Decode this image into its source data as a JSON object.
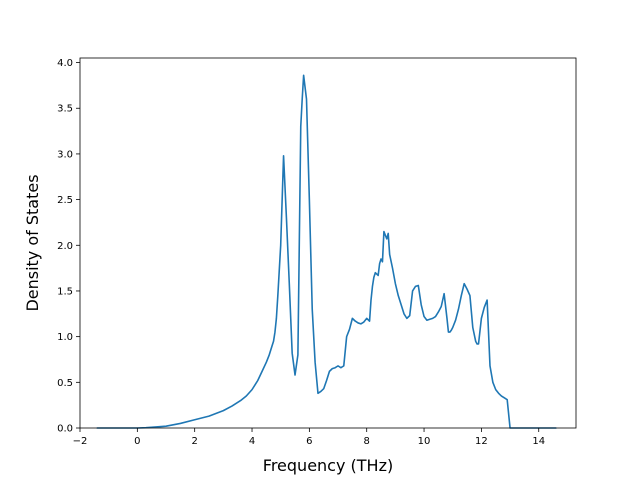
{
  "chart_data": {
    "type": "line",
    "title": "",
    "xlabel": "Frequency (THz)",
    "ylabel": "Density of States",
    "xlim": [
      -2.0,
      15.3
    ],
    "ylim": [
      0.0,
      4.05
    ],
    "grid": false,
    "legend": "none",
    "xticks": [
      -2,
      0,
      2,
      4,
      6,
      8,
      10,
      12,
      14
    ],
    "xtick_labels": [
      "−2",
      "0",
      "2",
      "4",
      "6",
      "8",
      "10",
      "12",
      "14"
    ],
    "yticks": [
      0.0,
      0.5,
      1.0,
      1.5,
      2.0,
      2.5,
      3.0,
      3.5,
      4.0
    ],
    "ytick_labels": [
      "0.0",
      "0.5",
      "1.0",
      "1.5",
      "2.0",
      "2.5",
      "3.0",
      "3.5",
      "4.0"
    ],
    "series": [
      {
        "color": "#1f77b4",
        "x": [
          -1.4,
          -0.5,
          0.0,
          0.3,
          0.6,
          1.0,
          1.5,
          2.0,
          2.5,
          3.0,
          3.3,
          3.6,
          3.8,
          4.0,
          4.2,
          4.35,
          4.5,
          4.6,
          4.7,
          4.75,
          4.8,
          4.85,
          4.9,
          5.0,
          5.1,
          5.2,
          5.3,
          5.35,
          5.4,
          5.5,
          5.6,
          5.7,
          5.75,
          5.8,
          5.9,
          6.0,
          6.1,
          6.2,
          6.3,
          6.4,
          6.5,
          6.6,
          6.7,
          6.8,
          6.9,
          7.0,
          7.1,
          7.2,
          7.3,
          7.4,
          7.5,
          7.6,
          7.7,
          7.8,
          7.9,
          8.0,
          8.1,
          8.15,
          8.2,
          8.25,
          8.3,
          8.4,
          8.45,
          8.5,
          8.55,
          8.6,
          8.7,
          8.75,
          8.8,
          8.9,
          9.0,
          9.1,
          9.2,
          9.3,
          9.4,
          9.5,
          9.6,
          9.7,
          9.8,
          9.9,
          10.0,
          10.1,
          10.2,
          10.3,
          10.4,
          10.5,
          10.6,
          10.7,
          10.8,
          10.85,
          10.9,
          10.95,
          11.0,
          11.1,
          11.2,
          11.3,
          11.4,
          11.5,
          11.6,
          11.7,
          11.8,
          11.85,
          11.9,
          12.0,
          12.1,
          12.2,
          12.3,
          12.4,
          12.5,
          12.6,
          12.7,
          12.8,
          12.9,
          13.0,
          13.1,
          13.2,
          13.3,
          13.4,
          13.5,
          14.0,
          14.5,
          14.6
        ],
        "y": [
          0.0,
          0.0,
          0.0,
          0.003,
          0.01,
          0.02,
          0.05,
          0.09,
          0.13,
          0.19,
          0.24,
          0.3,
          0.35,
          0.42,
          0.52,
          0.62,
          0.72,
          0.8,
          0.9,
          0.95,
          1.05,
          1.2,
          1.45,
          2.0,
          2.98,
          2.3,
          1.58,
          1.2,
          0.82,
          0.58,
          0.8,
          3.3,
          3.6,
          3.86,
          3.6,
          2.5,
          1.3,
          0.72,
          0.38,
          0.4,
          0.43,
          0.52,
          0.62,
          0.65,
          0.66,
          0.68,
          0.66,
          0.68,
          1.0,
          1.08,
          1.2,
          1.17,
          1.15,
          1.14,
          1.16,
          1.2,
          1.17,
          1.4,
          1.55,
          1.65,
          1.7,
          1.67,
          1.8,
          1.85,
          1.82,
          2.15,
          2.07,
          2.13,
          1.9,
          1.75,
          1.58,
          1.45,
          1.35,
          1.25,
          1.2,
          1.23,
          1.5,
          1.55,
          1.56,
          1.35,
          1.22,
          1.18,
          1.19,
          1.2,
          1.22,
          1.27,
          1.33,
          1.47,
          1.2,
          1.05,
          1.05,
          1.07,
          1.1,
          1.18,
          1.3,
          1.45,
          1.58,
          1.52,
          1.45,
          1.1,
          0.95,
          0.92,
          0.92,
          1.2,
          1.32,
          1.4,
          0.68,
          0.5,
          0.42,
          0.38,
          0.35,
          0.33,
          0.31,
          0.0,
          0.0,
          0.0,
          0.0,
          0.0,
          0.0,
          0.0,
          0.0,
          0.0
        ]
      }
    ]
  }
}
